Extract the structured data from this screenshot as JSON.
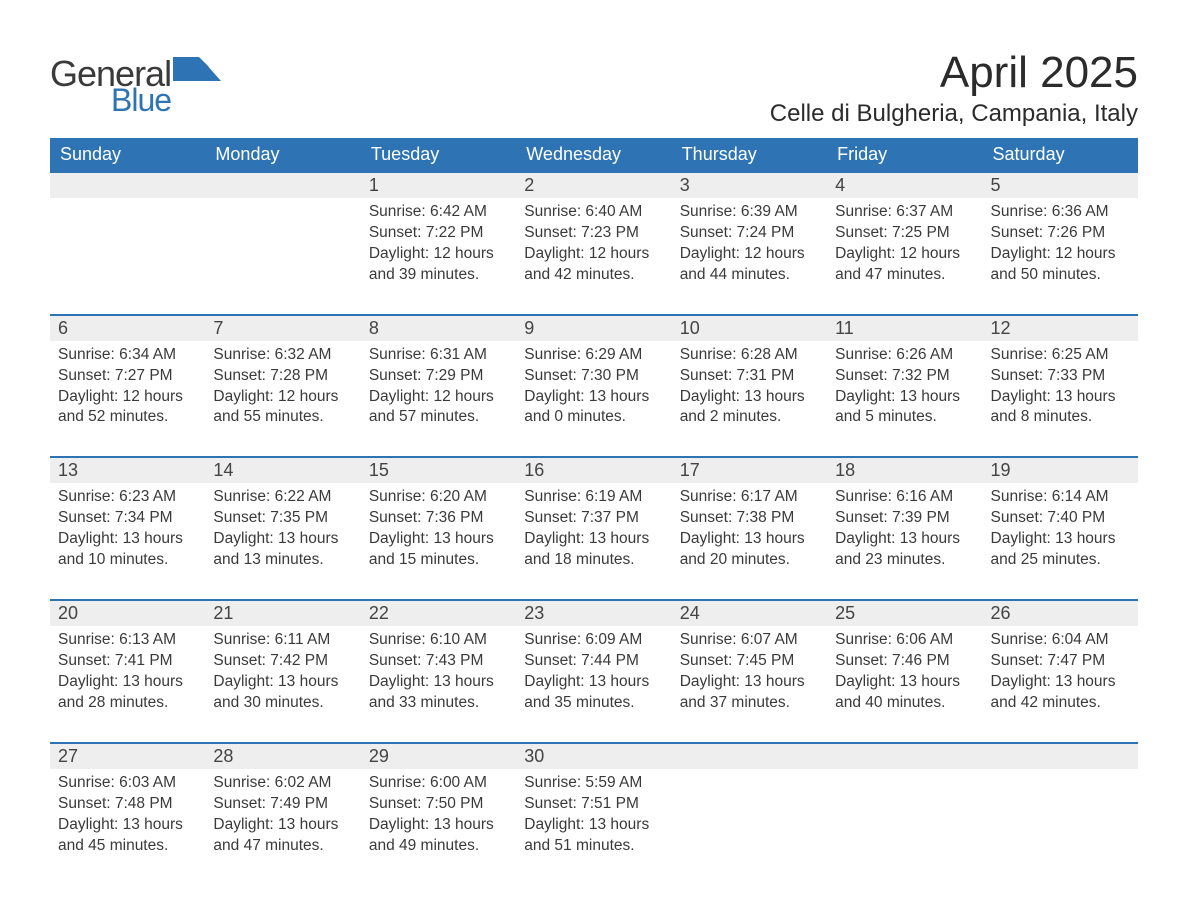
{
  "logo": {
    "general": "General",
    "blue": "Blue",
    "icon_color": "#2e74b5"
  },
  "title": "April 2025",
  "location": "Celle di Bulgheria, Campania, Italy",
  "colors": {
    "header_bg": "#2e74b5",
    "header_text": "#ffffff",
    "row_divider": "#2e74b5",
    "day_number_bg": "#eeeeee",
    "body_text": "#3a3a3a",
    "page_bg": "#ffffff"
  },
  "weekdays": [
    "Sunday",
    "Monday",
    "Tuesday",
    "Wednesday",
    "Thursday",
    "Friday",
    "Saturday"
  ],
  "weeks": [
    [
      null,
      null,
      {
        "n": "1",
        "sunrise": "Sunrise: 6:42 AM",
        "sunset": "Sunset: 7:22 PM",
        "d1": "Daylight: 12 hours",
        "d2": "and 39 minutes."
      },
      {
        "n": "2",
        "sunrise": "Sunrise: 6:40 AM",
        "sunset": "Sunset: 7:23 PM",
        "d1": "Daylight: 12 hours",
        "d2": "and 42 minutes."
      },
      {
        "n": "3",
        "sunrise": "Sunrise: 6:39 AM",
        "sunset": "Sunset: 7:24 PM",
        "d1": "Daylight: 12 hours",
        "d2": "and 44 minutes."
      },
      {
        "n": "4",
        "sunrise": "Sunrise: 6:37 AM",
        "sunset": "Sunset: 7:25 PM",
        "d1": "Daylight: 12 hours",
        "d2": "and 47 minutes."
      },
      {
        "n": "5",
        "sunrise": "Sunrise: 6:36 AM",
        "sunset": "Sunset: 7:26 PM",
        "d1": "Daylight: 12 hours",
        "d2": "and 50 minutes."
      }
    ],
    [
      {
        "n": "6",
        "sunrise": "Sunrise: 6:34 AM",
        "sunset": "Sunset: 7:27 PM",
        "d1": "Daylight: 12 hours",
        "d2": "and 52 minutes."
      },
      {
        "n": "7",
        "sunrise": "Sunrise: 6:32 AM",
        "sunset": "Sunset: 7:28 PM",
        "d1": "Daylight: 12 hours",
        "d2": "and 55 minutes."
      },
      {
        "n": "8",
        "sunrise": "Sunrise: 6:31 AM",
        "sunset": "Sunset: 7:29 PM",
        "d1": "Daylight: 12 hours",
        "d2": "and 57 minutes."
      },
      {
        "n": "9",
        "sunrise": "Sunrise: 6:29 AM",
        "sunset": "Sunset: 7:30 PM",
        "d1": "Daylight: 13 hours",
        "d2": "and 0 minutes."
      },
      {
        "n": "10",
        "sunrise": "Sunrise: 6:28 AM",
        "sunset": "Sunset: 7:31 PM",
        "d1": "Daylight: 13 hours",
        "d2": "and 2 minutes."
      },
      {
        "n": "11",
        "sunrise": "Sunrise: 6:26 AM",
        "sunset": "Sunset: 7:32 PM",
        "d1": "Daylight: 13 hours",
        "d2": "and 5 minutes."
      },
      {
        "n": "12",
        "sunrise": "Sunrise: 6:25 AM",
        "sunset": "Sunset: 7:33 PM",
        "d1": "Daylight: 13 hours",
        "d2": "and 8 minutes."
      }
    ],
    [
      {
        "n": "13",
        "sunrise": "Sunrise: 6:23 AM",
        "sunset": "Sunset: 7:34 PM",
        "d1": "Daylight: 13 hours",
        "d2": "and 10 minutes."
      },
      {
        "n": "14",
        "sunrise": "Sunrise: 6:22 AM",
        "sunset": "Sunset: 7:35 PM",
        "d1": "Daylight: 13 hours",
        "d2": "and 13 minutes."
      },
      {
        "n": "15",
        "sunrise": "Sunrise: 6:20 AM",
        "sunset": "Sunset: 7:36 PM",
        "d1": "Daylight: 13 hours",
        "d2": "and 15 minutes."
      },
      {
        "n": "16",
        "sunrise": "Sunrise: 6:19 AM",
        "sunset": "Sunset: 7:37 PM",
        "d1": "Daylight: 13 hours",
        "d2": "and 18 minutes."
      },
      {
        "n": "17",
        "sunrise": "Sunrise: 6:17 AM",
        "sunset": "Sunset: 7:38 PM",
        "d1": "Daylight: 13 hours",
        "d2": "and 20 minutes."
      },
      {
        "n": "18",
        "sunrise": "Sunrise: 6:16 AM",
        "sunset": "Sunset: 7:39 PM",
        "d1": "Daylight: 13 hours",
        "d2": "and 23 minutes."
      },
      {
        "n": "19",
        "sunrise": "Sunrise: 6:14 AM",
        "sunset": "Sunset: 7:40 PM",
        "d1": "Daylight: 13 hours",
        "d2": "and 25 minutes."
      }
    ],
    [
      {
        "n": "20",
        "sunrise": "Sunrise: 6:13 AM",
        "sunset": "Sunset: 7:41 PM",
        "d1": "Daylight: 13 hours",
        "d2": "and 28 minutes."
      },
      {
        "n": "21",
        "sunrise": "Sunrise: 6:11 AM",
        "sunset": "Sunset: 7:42 PM",
        "d1": "Daylight: 13 hours",
        "d2": "and 30 minutes."
      },
      {
        "n": "22",
        "sunrise": "Sunrise: 6:10 AM",
        "sunset": "Sunset: 7:43 PM",
        "d1": "Daylight: 13 hours",
        "d2": "and 33 minutes."
      },
      {
        "n": "23",
        "sunrise": "Sunrise: 6:09 AM",
        "sunset": "Sunset: 7:44 PM",
        "d1": "Daylight: 13 hours",
        "d2": "and 35 minutes."
      },
      {
        "n": "24",
        "sunrise": "Sunrise: 6:07 AM",
        "sunset": "Sunset: 7:45 PM",
        "d1": "Daylight: 13 hours",
        "d2": "and 37 minutes."
      },
      {
        "n": "25",
        "sunrise": "Sunrise: 6:06 AM",
        "sunset": "Sunset: 7:46 PM",
        "d1": "Daylight: 13 hours",
        "d2": "and 40 minutes."
      },
      {
        "n": "26",
        "sunrise": "Sunrise: 6:04 AM",
        "sunset": "Sunset: 7:47 PM",
        "d1": "Daylight: 13 hours",
        "d2": "and 42 minutes."
      }
    ],
    [
      {
        "n": "27",
        "sunrise": "Sunrise: 6:03 AM",
        "sunset": "Sunset: 7:48 PM",
        "d1": "Daylight: 13 hours",
        "d2": "and 45 minutes."
      },
      {
        "n": "28",
        "sunrise": "Sunrise: 6:02 AM",
        "sunset": "Sunset: 7:49 PM",
        "d1": "Daylight: 13 hours",
        "d2": "and 47 minutes."
      },
      {
        "n": "29",
        "sunrise": "Sunrise: 6:00 AM",
        "sunset": "Sunset: 7:50 PM",
        "d1": "Daylight: 13 hours",
        "d2": "and 49 minutes."
      },
      {
        "n": "30",
        "sunrise": "Sunrise: 5:59 AM",
        "sunset": "Sunset: 7:51 PM",
        "d1": "Daylight: 13 hours",
        "d2": "and 51 minutes."
      },
      null,
      null,
      null
    ]
  ]
}
